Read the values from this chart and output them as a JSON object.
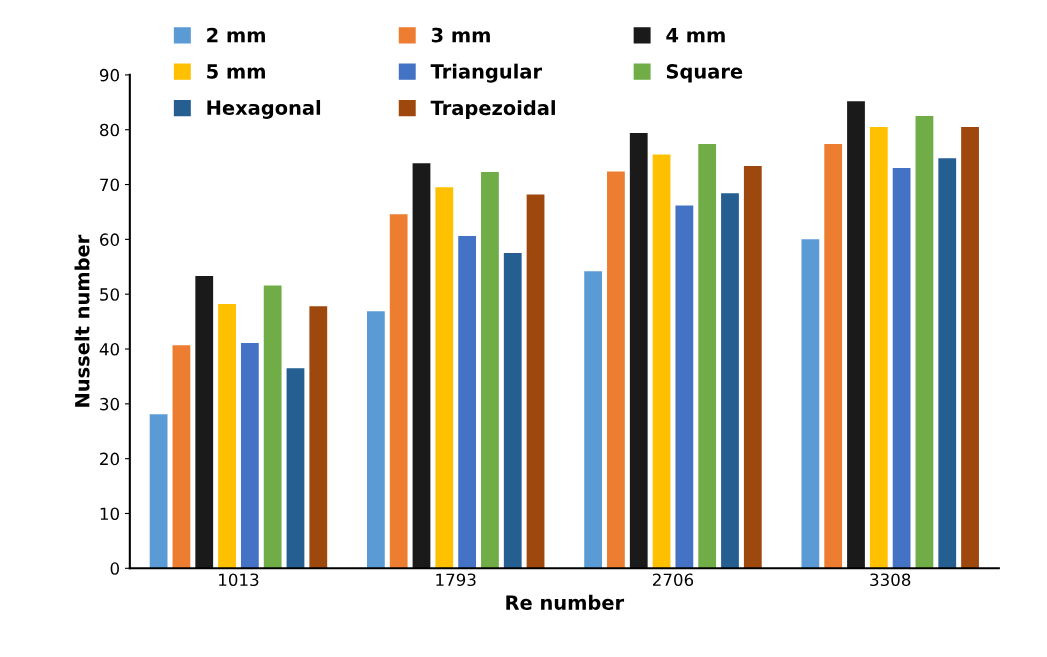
{
  "chart_data": {
    "type": "bar",
    "xlabel": "Re number",
    "ylabel": "Nusselt number",
    "categories": [
      "1013",
      "1793",
      "2706",
      "3308"
    ],
    "series": [
      {
        "name": "2 mm",
        "color": "#5b9bd5",
        "values": [
          28.1,
          46.9,
          54.2,
          60.0
        ]
      },
      {
        "name": "3 mm",
        "color": "#ed7d31",
        "values": [
          40.7,
          64.6,
          72.4,
          77.4
        ]
      },
      {
        "name": "4 mm",
        "color": "#1a1a1a",
        "values": [
          53.3,
          73.9,
          79.4,
          85.2
        ]
      },
      {
        "name": "5 mm",
        "color": "#ffc000",
        "values": [
          48.2,
          69.5,
          75.5,
          80.5
        ]
      },
      {
        "name": "Triangular",
        "color": "#4472c4",
        "values": [
          41.1,
          60.6,
          66.2,
          73.0
        ]
      },
      {
        "name": "Square",
        "color": "#70ad47",
        "values": [
          51.6,
          72.3,
          77.4,
          82.5
        ]
      },
      {
        "name": "Hexagonal",
        "color": "#255e91",
        "values": [
          36.5,
          57.5,
          68.4,
          74.8
        ]
      },
      {
        "name": "Trapezoidal",
        "color": "#9e480e",
        "values": [
          47.8,
          68.2,
          73.4,
          80.5
        ]
      }
    ],
    "ylim": [
      0,
      90
    ],
    "yticks": [
      0,
      10,
      20,
      30,
      40,
      50,
      60,
      70,
      80,
      90
    ],
    "grid": false,
    "legend": "top"
  }
}
